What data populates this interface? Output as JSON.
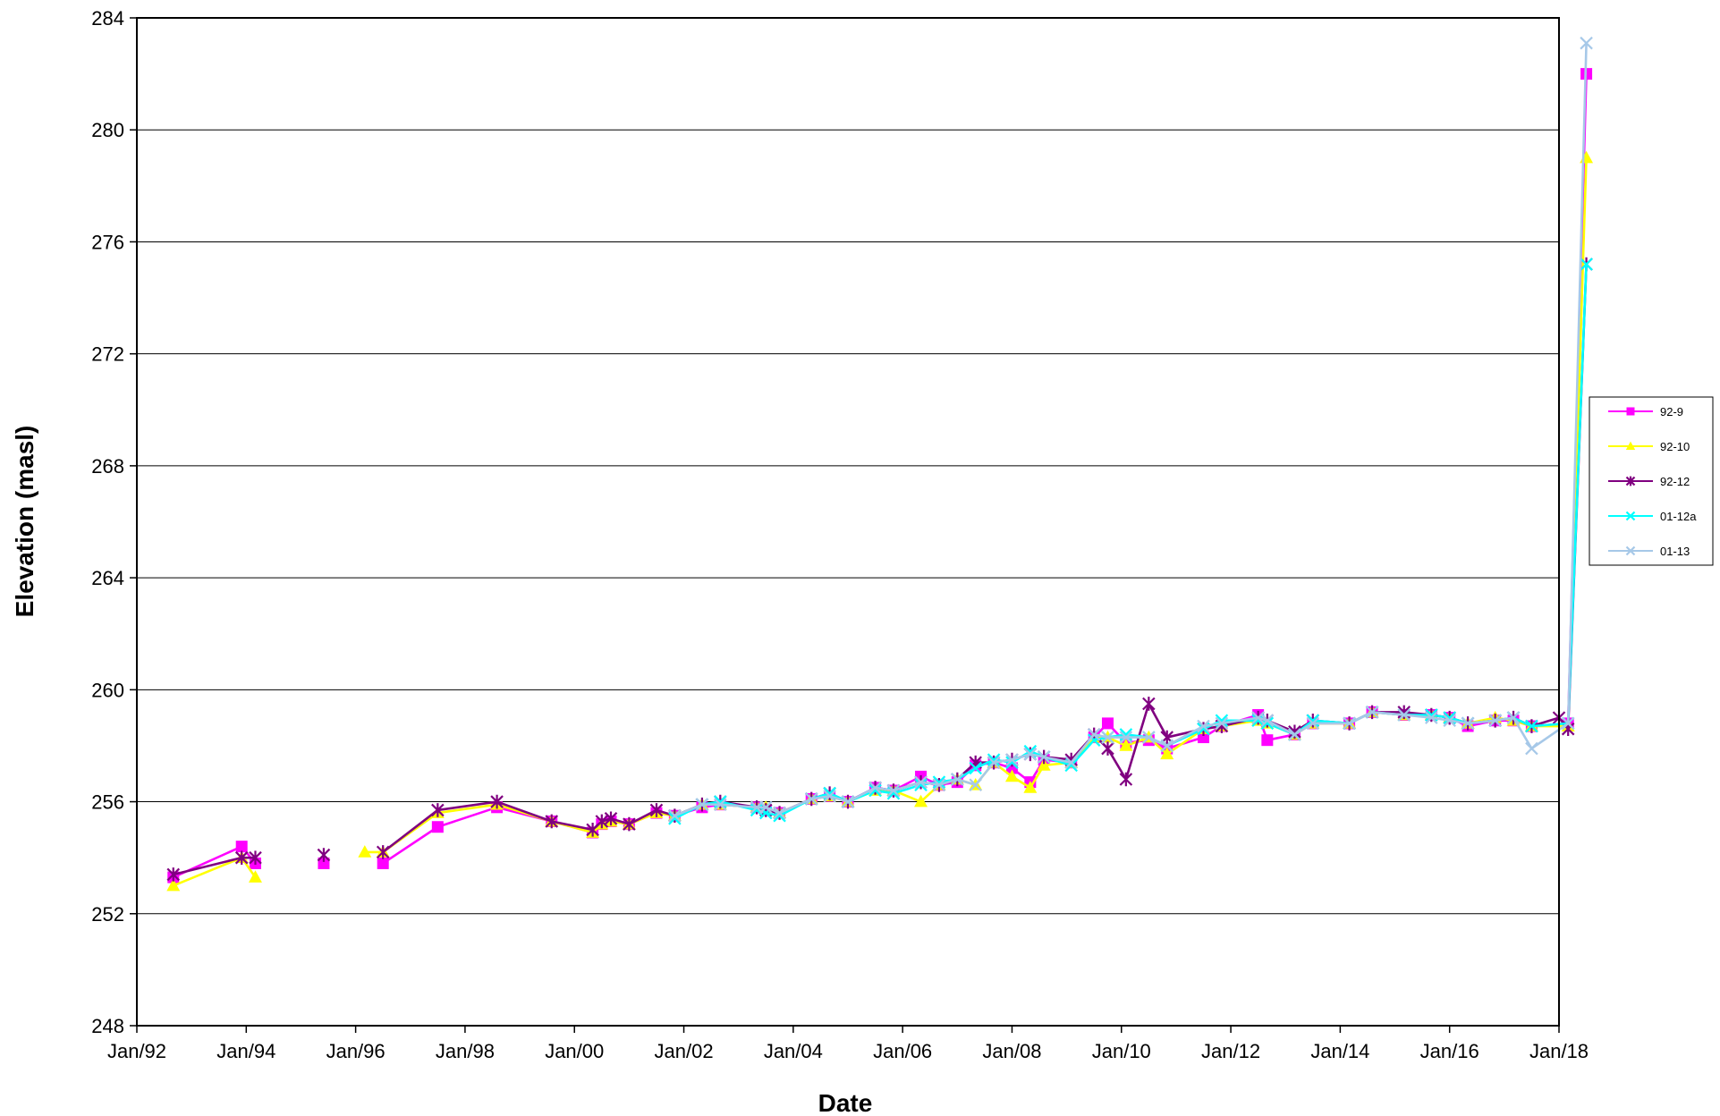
{
  "chart_data": {
    "type": "line",
    "title": "",
    "xlabel": "Date",
    "ylabel": "Elevation (masl)",
    "xlim": [
      "1992-01",
      "2018-01"
    ],
    "ylim": [
      248,
      284
    ],
    "x_tick_labels": [
      "Jan/92",
      "Jan/94",
      "Jan/96",
      "Jan/98",
      "Jan/00",
      "Jan/02",
      "Jan/04",
      "Jan/06",
      "Jan/08",
      "Jan/10",
      "Jan/12",
      "Jan/14",
      "Jan/16",
      "Jan/18"
    ],
    "y_tick_labels": [
      "248",
      "252",
      "256",
      "260",
      "264",
      "268",
      "272",
      "276",
      "280",
      "284"
    ],
    "grid": "horizontal",
    "legend_position": "right",
    "series": [
      {
        "name": "92-9",
        "color": "#FF00FF",
        "marker": "square",
        "points": [
          [
            "1992-09",
            253.3
          ],
          [
            "1993-12",
            254.4
          ],
          [
            "1994-03",
            253.8
          ],
          null,
          [
            "1995-06",
            253.8
          ],
          null,
          [
            "1996-07",
            253.8
          ],
          [
            "1997-07",
            255.1
          ],
          [
            "1998-08",
            255.8
          ],
          [
            "1999-08",
            255.3
          ],
          [
            "2000-05",
            254.9
          ],
          [
            "2000-07",
            255.2
          ],
          [
            "2000-09",
            255.3
          ],
          [
            "2001-01",
            255.2
          ],
          [
            "2001-07",
            255.6
          ],
          [
            "2001-11",
            255.5
          ],
          [
            "2002-05",
            255.8
          ],
          [
            "2002-09",
            255.9
          ],
          [
            "2003-05",
            255.8
          ],
          [
            "2003-07",
            255.7
          ],
          [
            "2003-10",
            255.6
          ],
          [
            "2004-05",
            256.1
          ],
          [
            "2004-09",
            256.2
          ],
          [
            "2005-01",
            256.0
          ],
          [
            "2005-07",
            256.5
          ],
          [
            "2005-11",
            256.4
          ],
          [
            "2006-05",
            256.9
          ],
          [
            "2006-09",
            256.6
          ],
          [
            "2007-01",
            256.7
          ],
          [
            "2007-05",
            257.3
          ],
          [
            "2007-09",
            257.4
          ],
          [
            "2008-01",
            257.2
          ],
          [
            "2008-05",
            256.7
          ],
          [
            "2008-08",
            257.5
          ],
          [
            "2009-02",
            257.4
          ],
          [
            "2009-07",
            258.3
          ],
          [
            "2009-10",
            258.8
          ],
          [
            "2010-02",
            258.1
          ],
          [
            "2010-07",
            258.2
          ],
          [
            "2010-11",
            257.9
          ],
          [
            "2011-07",
            258.3
          ],
          [
            "2011-11",
            258.7
          ],
          [
            "2012-07",
            259.1
          ],
          [
            "2012-09",
            258.2
          ],
          [
            "2013-03",
            258.4
          ],
          [
            "2013-07",
            258.8
          ],
          [
            "2014-03",
            258.8
          ],
          [
            "2014-08",
            259.2
          ],
          [
            "2015-03",
            259.1
          ],
          [
            "2015-09",
            259.1
          ],
          [
            "2016-01",
            259.0
          ],
          [
            "2016-05",
            258.7
          ],
          [
            "2016-11",
            258.9
          ],
          [
            "2017-03",
            258.9
          ],
          [
            "2017-07",
            258.7
          ],
          [
            "2018-03",
            258.8
          ],
          [
            "2018-07",
            282.0
          ]
        ]
      },
      {
        "name": "92-10",
        "color": "#FFFF00",
        "marker": "triangle",
        "points": [
          [
            "1992-09",
            253.0
          ],
          [
            "1993-12",
            254.0
          ],
          [
            "1994-03",
            253.3
          ],
          null,
          [
            "1996-03",
            254.2
          ],
          [
            "1996-07",
            254.2
          ],
          [
            "1997-07",
            255.6
          ],
          [
            "1998-08",
            255.9
          ],
          [
            "1999-08",
            255.3
          ],
          [
            "2000-05",
            254.9
          ],
          [
            "2000-07",
            255.2
          ],
          [
            "2000-09",
            255.3
          ],
          [
            "2001-01",
            255.2
          ],
          [
            "2001-07",
            255.6
          ],
          [
            "2001-11",
            255.5
          ],
          [
            "2002-05",
            255.9
          ],
          [
            "2002-09",
            255.9
          ],
          [
            "2003-05",
            255.8
          ],
          [
            "2003-07",
            255.8
          ],
          [
            "2003-10",
            255.6
          ],
          [
            "2004-05",
            256.1
          ],
          [
            "2004-09",
            256.2
          ],
          [
            "2005-01",
            256.0
          ],
          [
            "2005-07",
            256.4
          ],
          [
            "2005-11",
            256.4
          ],
          [
            "2006-05",
            256.0
          ],
          [
            "2006-09",
            256.6
          ],
          [
            "2007-01",
            256.8
          ],
          [
            "2007-05",
            256.6
          ],
          [
            "2007-09",
            257.4
          ],
          [
            "2008-01",
            256.9
          ],
          [
            "2008-05",
            256.5
          ],
          [
            "2008-08",
            257.3
          ],
          [
            "2009-02",
            257.4
          ],
          [
            "2009-07",
            258.3
          ],
          [
            "2009-10",
            258.3
          ],
          [
            "2010-02",
            258.0
          ],
          [
            "2010-07",
            258.3
          ],
          [
            "2010-11",
            257.7
          ],
          [
            "2011-07",
            258.6
          ],
          [
            "2011-11",
            258.7
          ],
          [
            "2012-07",
            258.9
          ],
          [
            "2012-09",
            258.8
          ],
          [
            "2013-03",
            258.4
          ],
          [
            "2013-07",
            258.8
          ],
          [
            "2014-03",
            258.8
          ],
          [
            "2014-08",
            259.2
          ],
          [
            "2015-03",
            259.1
          ],
          [
            "2015-09",
            259.1
          ],
          [
            "2016-01",
            259.0
          ],
          [
            "2016-05",
            258.8
          ],
          [
            "2016-11",
            259.0
          ],
          [
            "2017-03",
            258.9
          ],
          [
            "2017-07",
            258.7
          ],
          [
            "2018-03",
            258.7
          ],
          [
            "2018-07",
            279.0
          ]
        ]
      },
      {
        "name": "92-12",
        "color": "#800080",
        "marker": "star",
        "points": [
          [
            "1992-09",
            253.4
          ],
          [
            "1993-12",
            254.0
          ],
          [
            "1994-03",
            254.0
          ],
          null,
          [
            "1995-06",
            254.1
          ],
          null,
          [
            "1996-07",
            254.2
          ],
          [
            "1997-07",
            255.7
          ],
          [
            "1998-08",
            256.0
          ],
          [
            "1999-08",
            255.3
          ],
          [
            "2000-05",
            255.0
          ],
          [
            "2000-07",
            255.3
          ],
          [
            "2000-09",
            255.4
          ],
          [
            "2001-01",
            255.2
          ],
          [
            "2001-07",
            255.7
          ],
          [
            "2001-11",
            255.5
          ],
          [
            "2002-05",
            255.9
          ],
          [
            "2002-09",
            256.0
          ],
          [
            "2003-05",
            255.8
          ],
          [
            "2003-07",
            255.7
          ],
          [
            "2003-10",
            255.6
          ],
          [
            "2004-05",
            256.1
          ],
          [
            "2004-09",
            256.3
          ],
          [
            "2005-01",
            256.0
          ],
          [
            "2005-07",
            256.5
          ],
          [
            "2005-11",
            256.4
          ],
          [
            "2006-05",
            256.7
          ],
          [
            "2006-09",
            256.6
          ],
          [
            "2007-01",
            256.8
          ],
          [
            "2007-05",
            257.4
          ],
          [
            "2007-09",
            257.4
          ],
          [
            "2008-01",
            257.5
          ],
          [
            "2008-05",
            257.7
          ],
          [
            "2008-08",
            257.6
          ],
          [
            "2009-02",
            257.5
          ],
          [
            "2009-07",
            258.4
          ],
          [
            "2009-10",
            257.9
          ],
          [
            "2010-02",
            256.8
          ],
          [
            "2010-07",
            259.5
          ],
          [
            "2010-11",
            258.3
          ],
          [
            "2011-07",
            258.6
          ],
          [
            "2011-11",
            258.7
          ],
          [
            "2012-07",
            259.0
          ],
          [
            "2012-09",
            258.9
          ],
          [
            "2013-03",
            258.5
          ],
          [
            "2013-07",
            258.9
          ],
          [
            "2014-03",
            258.8
          ],
          [
            "2014-08",
            259.2
          ],
          [
            "2015-03",
            259.2
          ],
          [
            "2015-09",
            259.1
          ],
          [
            "2016-01",
            259.0
          ],
          [
            "2016-05",
            258.8
          ],
          [
            "2016-11",
            258.9
          ],
          [
            "2017-03",
            259.0
          ],
          [
            "2017-07",
            258.7
          ],
          [
            "2018-01",
            259.0
          ],
          [
            "2018-03",
            258.6
          ],
          [
            "2018-07",
            275.2
          ]
        ]
      },
      {
        "name": "01-12a",
        "color": "#00FFFF",
        "marker": "x",
        "points": [
          [
            "2001-11",
            255.4
          ],
          [
            "2002-05",
            255.9
          ],
          [
            "2002-09",
            256.0
          ],
          [
            "2003-05",
            255.7
          ],
          [
            "2003-07",
            255.6
          ],
          [
            "2003-10",
            255.5
          ],
          [
            "2004-05",
            256.1
          ],
          [
            "2004-09",
            256.3
          ],
          [
            "2005-01",
            256.0
          ],
          [
            "2005-07",
            256.4
          ],
          [
            "2005-11",
            256.3
          ],
          [
            "2006-05",
            256.6
          ],
          [
            "2006-09",
            256.7
          ],
          [
            "2007-01",
            256.8
          ],
          [
            "2007-05",
            257.2
          ],
          [
            "2007-09",
            257.5
          ],
          [
            "2008-01",
            257.4
          ],
          [
            "2008-05",
            257.8
          ],
          [
            "2008-08",
            257.6
          ],
          [
            "2009-02",
            257.3
          ],
          [
            "2009-07",
            258.2
          ],
          [
            "2009-10",
            258.3
          ],
          [
            "2010-02",
            258.4
          ],
          [
            "2010-07",
            258.3
          ],
          [
            "2010-11",
            258.0
          ],
          [
            "2011-07",
            258.6
          ],
          [
            "2011-11",
            258.9
          ],
          [
            "2012-07",
            258.9
          ],
          [
            "2012-09",
            258.8
          ],
          [
            "2013-03",
            258.4
          ],
          [
            "2013-07",
            258.9
          ],
          [
            "2014-03",
            258.8
          ],
          [
            "2014-08",
            259.2
          ],
          [
            "2015-03",
            259.1
          ],
          [
            "2015-09",
            259.1
          ],
          [
            "2016-01",
            259.0
          ],
          [
            "2016-05",
            258.8
          ],
          [
            "2016-11",
            258.9
          ],
          [
            "2017-03",
            259.0
          ],
          [
            "2017-07",
            258.7
          ],
          [
            "2018-03",
            258.8
          ],
          [
            "2018-07",
            275.2
          ]
        ]
      },
      {
        "name": "01-13",
        "color": "#A6C8E8",
        "marker": "x",
        "points": [
          [
            "2001-11",
            255.5
          ],
          [
            "2002-05",
            255.9
          ],
          [
            "2002-09",
            255.9
          ],
          [
            "2003-05",
            255.8
          ],
          [
            "2003-07",
            255.8
          ],
          [
            "2003-10",
            255.6
          ],
          [
            "2004-05",
            256.1
          ],
          [
            "2004-09",
            256.2
          ],
          [
            "2005-01",
            256.0
          ],
          [
            "2005-07",
            256.5
          ],
          [
            "2005-11",
            256.4
          ],
          [
            "2006-05",
            256.7
          ],
          [
            "2006-09",
            256.6
          ],
          [
            "2007-01",
            256.8
          ],
          [
            "2007-05",
            256.6
          ],
          [
            "2007-09",
            257.4
          ],
          [
            "2008-01",
            257.5
          ],
          [
            "2008-05",
            257.7
          ],
          [
            "2008-08",
            257.6
          ],
          [
            "2009-02",
            257.4
          ],
          [
            "2009-07",
            258.4
          ],
          [
            "2009-10",
            258.3
          ],
          [
            "2010-02",
            258.3
          ],
          [
            "2010-07",
            258.3
          ],
          [
            "2010-11",
            258.0
          ],
          [
            "2011-07",
            258.7
          ],
          [
            "2011-11",
            258.8
          ],
          [
            "2012-07",
            259.0
          ],
          [
            "2012-09",
            258.9
          ],
          [
            "2013-03",
            258.4
          ],
          [
            "2013-07",
            258.8
          ],
          [
            "2014-03",
            258.8
          ],
          [
            "2014-08",
            259.2
          ],
          [
            "2015-03",
            259.1
          ],
          [
            "2015-09",
            259.0
          ],
          [
            "2016-01",
            258.9
          ],
          [
            "2016-05",
            258.8
          ],
          [
            "2016-11",
            258.9
          ],
          [
            "2017-03",
            259.0
          ],
          [
            "2017-07",
            257.9
          ],
          [
            "2018-03",
            258.8
          ],
          [
            "2018-07",
            283.1
          ]
        ]
      }
    ]
  }
}
